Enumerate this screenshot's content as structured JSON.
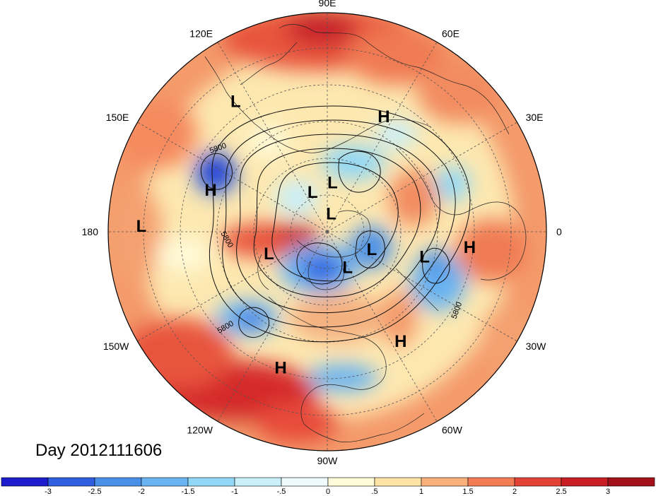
{
  "title": "Day 2012111606",
  "longitude_labels": [
    "90E",
    "60E",
    "30E",
    "0",
    "30W",
    "60W",
    "90W",
    "120W",
    "150W",
    "180",
    "150E",
    "120E"
  ],
  "pressure_centers": [
    {
      "type": "L",
      "lon_deg": 125,
      "colat_deg": 67
    },
    {
      "type": "H",
      "lon_deg": 64,
      "colat_deg": 54
    },
    {
      "type": "H",
      "lon_deg": 160,
      "colat_deg": 52
    },
    {
      "type": "L",
      "lon_deg": 178,
      "colat_deg": 78
    },
    {
      "type": "L",
      "lon_deg": 110,
      "colat_deg": 18
    },
    {
      "type": "L",
      "lon_deg": 84,
      "colat_deg": 21
    },
    {
      "type": "L",
      "lon_deg": 78,
      "colat_deg": 8
    },
    {
      "type": "L",
      "lon_deg": -60,
      "colat_deg": 17
    },
    {
      "type": "L",
      "lon_deg": -21,
      "colat_deg": 20
    },
    {
      "type": "L",
      "lon_deg": -14,
      "colat_deg": 42
    },
    {
      "type": "H",
      "lon_deg": -6,
      "colat_deg": 60
    },
    {
      "type": "L",
      "lon_deg": -160,
      "colat_deg": 26
    },
    {
      "type": "H",
      "lon_deg": -56,
      "colat_deg": 55
    },
    {
      "type": "H",
      "lon_deg": -109,
      "colat_deg": 60
    }
  ],
  "contour_labels": [
    "5800",
    "5800",
    "5800",
    "5800"
  ],
  "colorbar": {
    "ticks": [
      "-3",
      "-2.5",
      "-2",
      "-1.5",
      "-1",
      "-.5",
      "0",
      ".5",
      "1",
      "1.5",
      "2",
      "2.5",
      "3"
    ],
    "colors": [
      "#1d1ccc",
      "#2f5fe0",
      "#4a8fe8",
      "#6ab4f2",
      "#92d8f6",
      "#c8effa",
      "#eefafd",
      "#fffad8",
      "#fde4a4",
      "#f9b07a",
      "#f27d55",
      "#e34336",
      "#c81e24",
      "#a3101a"
    ]
  }
}
